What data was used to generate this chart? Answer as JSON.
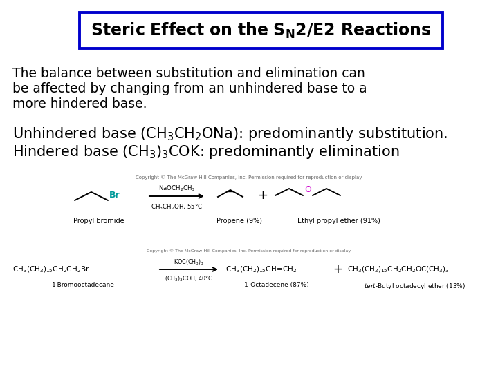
{
  "bg_color": "#ffffff",
  "title_box_border_color": "#0000cc",
  "title_box_bg": "#ffffff",
  "font_color": "#000000",
  "title_fontsize": 17,
  "body_fontsize": 13.5,
  "para2_fontsize": 15,
  "small_fontsize": 7,
  "copyright_fontsize": 5,
  "rxn_fontsize": 8,
  "rxn2_fontsize": 7.5,
  "label_fontsize": 7,
  "para1_lines": [
    "The balance between substitution and elimination can",
    "be affected by changing from an unhindered base to a",
    "more hindered base."
  ],
  "copyright1": "Copyright © The McGraw-Hill Companies, Inc. Permission required for reproduction or display.",
  "copyright2": "Copyright © The McGraw-Hill Companies, Inc. Permission required for reproduction or display."
}
